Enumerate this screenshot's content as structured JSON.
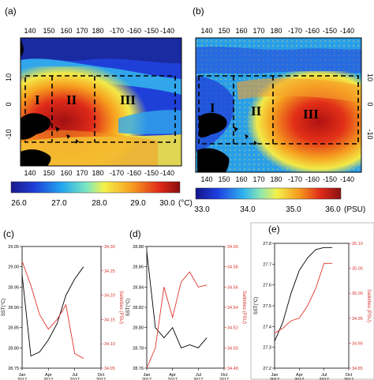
{
  "panels": {
    "a": {
      "label": "(a)",
      "top_ticks": [
        "140",
        "150",
        "160",
        "170",
        "180",
        "-170",
        "-160",
        "-150",
        "-140"
      ],
      "bottom_ticks": [
        "140",
        "150",
        "160",
        "170",
        "180",
        "-170",
        "-160",
        "-150",
        "-140"
      ],
      "left_ticks": [
        "10",
        "0",
        "-10"
      ],
      "regions": [
        "I",
        "II",
        "III"
      ],
      "colorbar": {
        "ticks": [
          "26.0",
          "27.0",
          "28.0",
          "29.0",
          "30.0"
        ],
        "unit": "(°C)"
      }
    },
    "b": {
      "label": "(b)",
      "top_ticks": [
        "140",
        "150",
        "160",
        "170",
        "180",
        "-170",
        "-160",
        "-150",
        "-140"
      ],
      "bottom_ticks": [
        "140",
        "150",
        "160",
        "170",
        "180",
        "-170",
        "-160",
        "-150",
        "-140"
      ],
      "right_ticks": [
        "10",
        "0",
        "-10"
      ],
      "regions": [
        "I",
        "II",
        "III"
      ],
      "colorbar": {
        "ticks": [
          "33.0",
          "34.0",
          "35.0",
          "36.0"
        ],
        "unit": "(PSU)"
      }
    },
    "c": {
      "label": "(c)"
    },
    "d": {
      "label": "(d)"
    },
    "e": {
      "label": "(e)"
    }
  },
  "colors": {
    "sst": "#000000",
    "sss": "#e0352b",
    "axis_right": "#d0342c"
  },
  "chart_data": [
    {
      "type": "line",
      "panel": "c",
      "xlabel": "",
      "ylabel_left": "SST(°C)",
      "ylabel_right": "Salinities (PSU)",
      "xticks": [
        "Jan 2017",
        "Apr 2017",
        "Jul 2017",
        "Oct 2017"
      ],
      "ylim_left": [
        28.75,
        29.05
      ],
      "yticks_left": [
        "28.75",
        "28.80",
        "28.85",
        "28.90",
        "28.95",
        "29.00",
        "29.05"
      ],
      "ylim_right": [
        34.05,
        34.3
      ],
      "yticks_right": [
        "34.05",
        "34.10",
        "34.15",
        "34.20",
        "34.25",
        "34.30"
      ],
      "x": [
        1,
        2,
        3,
        4,
        5,
        6,
        7,
        8
      ],
      "series": [
        {
          "axis": "left",
          "values": [
            28.98,
            28.78,
            28.79,
            28.82,
            28.86,
            28.93,
            28.97,
            29.0
          ]
        },
        {
          "axis": "right",
          "values": [
            34.27,
            34.22,
            34.16,
            34.13,
            34.15,
            34.18,
            34.08,
            34.07
          ]
        }
      ]
    },
    {
      "type": "line",
      "panel": "d",
      "xlabel": "",
      "ylabel_left": "SST(°C)",
      "ylabel_right": "Salinities (PSU)",
      "xticks": [
        "Jan 2017",
        "Apr 2017",
        "Jul 2017",
        "Oct 2017"
      ],
      "ylim_left": [
        28.76,
        28.88
      ],
      "yticks_left": [
        "28.76",
        "28.78",
        "28.80",
        "28.82",
        "28.84",
        "28.86",
        "28.88"
      ],
      "ylim_right": [
        34.48,
        34.6
      ],
      "yticks_right": [
        "34.48",
        "34.50",
        "34.52",
        "34.54",
        "34.56",
        "34.58",
        "34.60"
      ],
      "x": [
        1,
        2,
        3,
        4,
        5,
        6,
        7,
        8
      ],
      "series": [
        {
          "axis": "left",
          "values": [
            28.875,
            28.8,
            28.79,
            28.8,
            28.78,
            28.783,
            28.78,
            28.79
          ]
        },
        {
          "axis": "right",
          "values": [
            34.48,
            34.5,
            34.56,
            34.53,
            34.565,
            34.575,
            34.56,
            34.562
          ]
        }
      ]
    },
    {
      "type": "line",
      "panel": "e",
      "xlabel": "",
      "ylabel_left": "SST(°C)",
      "ylabel_right": "Salinities (PSU)",
      "xticks": [
        "Jan 2017",
        "Apr 2017",
        "Jul 2017",
        "Oct 2017"
      ],
      "ylim_left": [
        27.2,
        27.8
      ],
      "yticks_left": [
        "27.2",
        "27.3",
        "27.4",
        "27.5",
        "27.6",
        "27.7",
        "27.8"
      ],
      "ylim_right": [
        34.85,
        35.1
      ],
      "yticks_right": [
        "34.85",
        "34.90",
        "34.95",
        "35.00",
        "35.05",
        "35.10"
      ],
      "x": [
        1,
        2,
        3,
        4,
        5,
        6,
        7,
        8
      ],
      "series": [
        {
          "axis": "left",
          "values": [
            27.33,
            27.42,
            27.56,
            27.67,
            27.73,
            27.77,
            27.78,
            27.78
          ]
        },
        {
          "axis": "right",
          "values": [
            34.92,
            34.93,
            34.945,
            34.95,
            34.975,
            35.01,
            35.06,
            35.06
          ]
        }
      ]
    }
  ]
}
